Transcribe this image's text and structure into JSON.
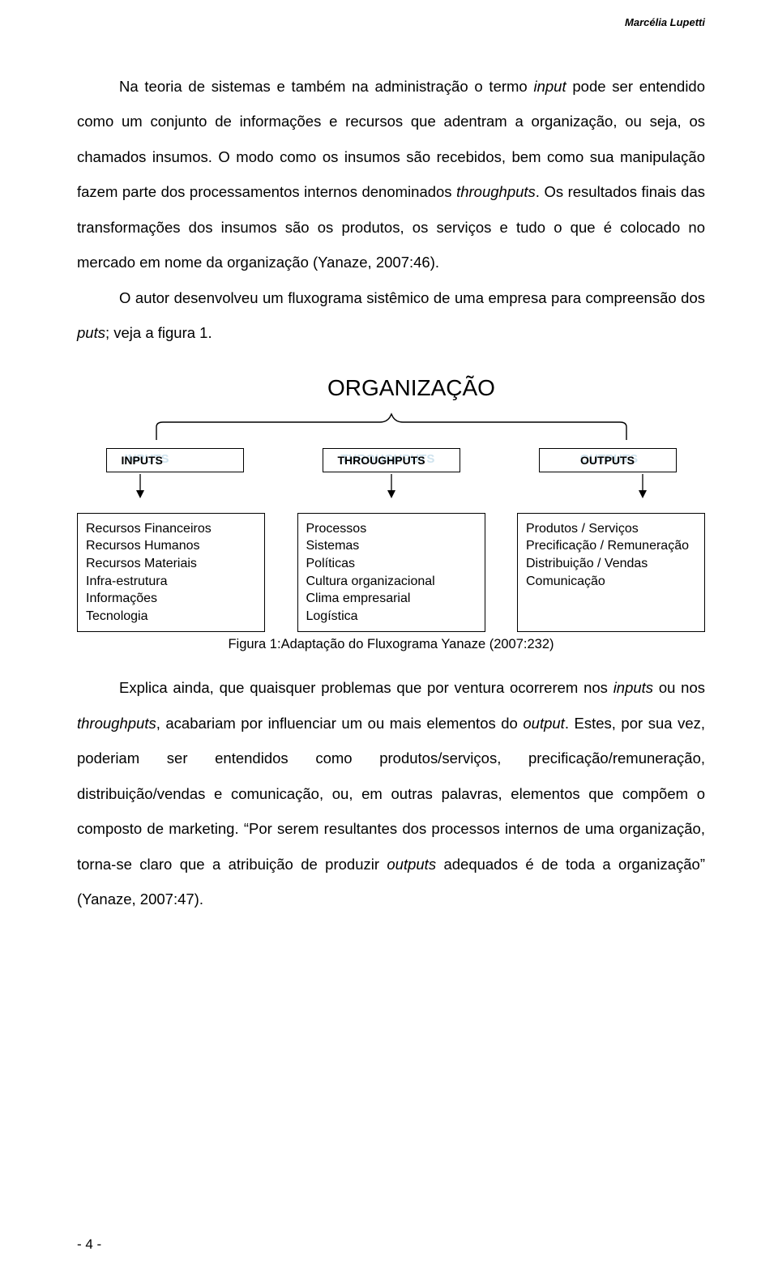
{
  "header": {
    "author": "Marcélia Lupetti"
  },
  "paragraphs": {
    "p1a": "Na teoria de sistemas e também na administração o termo ",
    "p1b": "input",
    "p1c": " pode ser entendido como um conjunto de informações e recursos que adentram a organização, ou seja, os chamados insumos. O modo como os insumos são recebidos, bem como sua manipulação fazem parte dos processamentos internos denominados ",
    "p1d": "throughputs",
    "p1e": ". Os resultados finais das transformações dos insumos são os produtos, os serviços e tudo o que é colocado no mercado em nome da organização (Yanaze, 2007:46).",
    "p2a": "O autor desenvolveu um fluxograma sistêmico de uma empresa para compreensão dos ",
    "p2b": "puts",
    "p2c": "; veja a figura 1."
  },
  "diagram": {
    "org_title": "ORGANIZAÇÃO",
    "bracket_stroke": "#000000",
    "arrow_color": "#000000",
    "shadow_color": "#cfe3ee",
    "columns": [
      {
        "label": "INPUTS",
        "shadow_label": "INPUTS",
        "items": "Recursos Financeiros\nRecursos Humanos\nRecursos Materiais\nInfra-estrutura\nInformações\nTecnologia"
      },
      {
        "label": "THROUGHPUTS",
        "shadow_label": "THROUGHPUTS",
        "items": "Processos\nSistemas\nPolíticas\nCultura organizacional\nClima empresarial\nLogística"
      },
      {
        "label": "OUTPUTS",
        "shadow_label": "OUTPUTS",
        "items": "Produtos / Serviços\nPrecificação / Remuneração\nDistribuição / Vendas\nComunicação"
      }
    ],
    "caption": "Figura 1:Adaptação do Fluxograma Yanaze (2007:232)"
  },
  "paragraph3": {
    "a": "Explica ainda, que quaisquer problemas que por ventura ocorrerem nos ",
    "b": "inputs",
    "c": " ou nos ",
    "d": "throughputs",
    "e": ", acabariam por influenciar um ou mais elementos do ",
    "f": "output",
    "g": ". Estes, por sua vez, poderiam ser entendidos como produtos/serviços, precificação/remuneração, distribuição/vendas e comunicação, ou, em outras palavras, elementos que compõem o composto de marketing. “Por serem resultantes dos processos internos de uma organização, torna-se claro que a atribuição de produzir ",
    "h": "outputs",
    "i": " adequados é de toda a organização” (Yanaze, 2007:47)."
  },
  "footer": {
    "page_number": "- 4 -"
  }
}
